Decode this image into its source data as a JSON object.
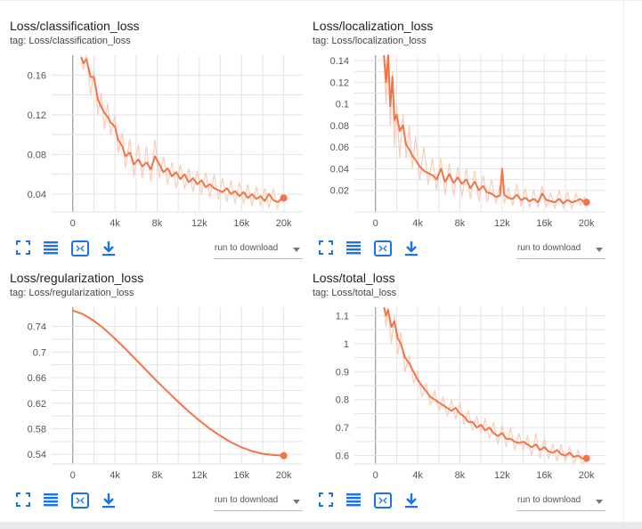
{
  "page": {
    "download_label": "run to download"
  },
  "colors": {
    "series": "#f47446",
    "raw": "#f9c6b2",
    "grid": "#e3e3e3",
    "axis": "#999999",
    "icon": "#1a73e8"
  },
  "chart_data": [
    {
      "type": "line",
      "title": "Loss/classification_loss",
      "tag": "tag: Loss/classification_loss",
      "xlabel": "",
      "ylabel": "",
      "x_ticks": [
        "0",
        "4k",
        "8k",
        "12k",
        "16k",
        "20k"
      ],
      "y_ticks": [
        "0.04",
        "0.08",
        "0.12",
        "0.16"
      ],
      "xlim": [
        -2000,
        21800
      ],
      "ylim": [
        0.022,
        0.18
      ],
      "smoothed": {
        "x": [
          800,
          1000,
          1300,
          1700,
          2000,
          2400,
          2700,
          3000,
          3300,
          3600,
          4000,
          4300,
          4700,
          5000,
          5400,
          5800,
          6200,
          6600,
          7000,
          7400,
          7800,
          8200,
          8600,
          9000,
          9400,
          9800,
          10200,
          10600,
          11000,
          11400,
          11800,
          12200,
          12600,
          13000,
          13400,
          13800,
          14200,
          14600,
          15000,
          15400,
          15800,
          16200,
          16600,
          17000,
          17400,
          17800,
          18200,
          18600,
          19000,
          19400,
          19800,
          20000
        ],
        "y": [
          0.178,
          0.172,
          0.176,
          0.158,
          0.158,
          0.135,
          0.128,
          0.122,
          0.118,
          0.112,
          0.108,
          0.095,
          0.088,
          0.078,
          0.082,
          0.07,
          0.075,
          0.068,
          0.072,
          0.065,
          0.078,
          0.07,
          0.062,
          0.066,
          0.058,
          0.062,
          0.055,
          0.06,
          0.052,
          0.056,
          0.05,
          0.054,
          0.047,
          0.05,
          0.046,
          0.044,
          0.042,
          0.046,
          0.04,
          0.043,
          0.038,
          0.042,
          0.036,
          0.04,
          0.035,
          0.038,
          0.033,
          0.04,
          0.034,
          0.032,
          0.035,
          0.036
        ]
      },
      "raw": {
        "x": [
          800,
          1000,
          1300,
          1700,
          2000,
          2400,
          2700,
          3000,
          3300,
          3600,
          4000,
          4300,
          4700,
          5000,
          5400,
          5800,
          6200,
          6600,
          7000,
          7400,
          7800,
          8200,
          8600,
          9000,
          9400,
          9800,
          10200,
          10600,
          11000,
          11400,
          11800,
          12200,
          12600,
          13000,
          13400,
          13800,
          14200,
          14600,
          15000,
          15400,
          15800,
          16200,
          16600,
          17000,
          17400,
          17800,
          18200,
          18600,
          19000,
          19400,
          19800,
          20000
        ],
        "y": [
          0.18,
          0.165,
          0.18,
          0.14,
          0.165,
          0.12,
          0.142,
          0.105,
          0.132,
          0.1,
          0.12,
          0.082,
          0.102,
          0.066,
          0.096,
          0.058,
          0.09,
          0.056,
          0.088,
          0.052,
          0.095,
          0.056,
          0.078,
          0.05,
          0.072,
          0.046,
          0.07,
          0.045,
          0.066,
          0.042,
          0.064,
          0.04,
          0.062,
          0.036,
          0.06,
          0.034,
          0.056,
          0.032,
          0.054,
          0.03,
          0.052,
          0.03,
          0.05,
          0.028,
          0.048,
          0.028,
          0.046,
          0.026,
          0.046,
          0.026,
          0.04,
          0.036
        ]
      },
      "last_point": {
        "x": 20000,
        "y": 0.036
      }
    },
    {
      "type": "line",
      "title": "Loss/localization_loss",
      "tag": "tag: Loss/localization_loss",
      "xlabel": "",
      "ylabel": "",
      "x_ticks": [
        "0",
        "4k",
        "8k",
        "12k",
        "16k",
        "20k"
      ],
      "y_ticks": [
        "0.02",
        "0.04",
        "0.06",
        "0.08",
        "0.1",
        "0.12",
        "0.14"
      ],
      "xlim": [
        -2000,
        21800
      ],
      "ylim": [
        0.0,
        0.145
      ],
      "smoothed": {
        "x": [
          800,
          1000,
          1200,
          1400,
          1600,
          1800,
          2000,
          2300,
          2600,
          2900,
          3200,
          3500,
          3800,
          4200,
          4600,
          5000,
          5400,
          5800,
          6200,
          6600,
          7000,
          7400,
          7800,
          8200,
          8600,
          9000,
          9400,
          9800,
          10200,
          10600,
          11000,
          11400,
          11800,
          12000,
          12200,
          12600,
          13000,
          13400,
          13800,
          14200,
          14600,
          15000,
          15400,
          15800,
          16200,
          16600,
          17000,
          17400,
          17800,
          18200,
          18600,
          19000,
          19400,
          19800,
          20000
        ],
        "y": [
          0.145,
          0.12,
          0.145,
          0.098,
          0.125,
          0.085,
          0.09,
          0.075,
          0.08,
          0.062,
          0.058,
          0.052,
          0.048,
          0.042,
          0.038,
          0.036,
          0.034,
          0.03,
          0.04,
          0.028,
          0.035,
          0.027,
          0.032,
          0.026,
          0.03,
          0.022,
          0.028,
          0.02,
          0.024,
          0.018,
          0.017,
          0.014,
          0.015,
          0.04,
          0.016,
          0.013,
          0.012,
          0.016,
          0.011,
          0.013,
          0.01,
          0.012,
          0.009,
          0.017,
          0.011,
          0.01,
          0.009,
          0.012,
          0.008,
          0.011,
          0.009,
          0.01,
          0.012,
          0.009,
          0.009
        ]
      },
      "raw": {
        "x": [
          800,
          1000,
          1200,
          1400,
          1600,
          1800,
          2000,
          2300,
          2600,
          2900,
          3200,
          3500,
          3800,
          4200,
          4600,
          5000,
          5400,
          5800,
          6200,
          6600,
          7000,
          7400,
          7800,
          8200,
          8600,
          9000,
          9400,
          9800,
          10200,
          10600,
          11000,
          11400,
          11800,
          12000,
          12200,
          12600,
          13000,
          13400,
          13800,
          14200,
          14600,
          15000,
          15400,
          15800,
          16200,
          16600,
          17000,
          17400,
          17800,
          18200,
          18600,
          19000,
          19400,
          19800,
          20000
        ],
        "y": [
          0.145,
          0.1,
          0.145,
          0.08,
          0.13,
          0.06,
          0.1,
          0.05,
          0.09,
          0.05,
          0.08,
          0.04,
          0.07,
          0.03,
          0.06,
          0.025,
          0.05,
          0.02,
          0.05,
          0.016,
          0.045,
          0.015,
          0.042,
          0.014,
          0.04,
          0.012,
          0.038,
          0.01,
          0.034,
          0.009,
          0.03,
          0.008,
          0.025,
          0.03,
          0.008,
          0.022,
          0.006,
          0.026,
          0.005,
          0.022,
          0.004,
          0.02,
          0.004,
          0.024,
          0.004,
          0.018,
          0.003,
          0.02,
          0.003,
          0.018,
          0.003,
          0.017,
          0.006,
          0.014,
          0.009
        ]
      },
      "last_point": {
        "x": 20000,
        "y": 0.009
      }
    },
    {
      "type": "line",
      "title": "Loss/regularization_loss",
      "tag": "tag: Loss/regularization_loss",
      "xlabel": "",
      "ylabel": "",
      "x_ticks": [
        "0",
        "4k",
        "8k",
        "12k",
        "16k",
        "20k"
      ],
      "y_ticks": [
        "0.54",
        "0.58",
        "0.62",
        "0.66",
        "0.7",
        "0.74"
      ],
      "xlim": [
        -2000,
        21800
      ],
      "ylim": [
        0.525,
        0.77
      ],
      "smoothed": {
        "x": [
          0,
          1000,
          2000,
          3000,
          4000,
          5000,
          6000,
          7000,
          8000,
          9000,
          10000,
          11000,
          12000,
          13000,
          14000,
          15000,
          16000,
          17000,
          18000,
          19000,
          20000
        ],
        "y": [
          0.765,
          0.759,
          0.749,
          0.736,
          0.721,
          0.705,
          0.688,
          0.671,
          0.654,
          0.638,
          0.622,
          0.607,
          0.593,
          0.58,
          0.569,
          0.559,
          0.551,
          0.545,
          0.541,
          0.539,
          0.538
        ]
      },
      "raw": null,
      "last_point": {
        "x": 20000,
        "y": 0.538
      }
    },
    {
      "type": "line",
      "title": "Loss/total_loss",
      "tag": "tag: Loss/total_loss",
      "xlabel": "",
      "ylabel": "",
      "x_ticks": [
        "0",
        "4k",
        "8k",
        "12k",
        "16k",
        "20k"
      ],
      "y_ticks": [
        "0.6",
        "0.7",
        "0.8",
        "0.9",
        "1",
        "1.1"
      ],
      "xlim": [
        -2000,
        21800
      ],
      "ylim": [
        0.57,
        1.13
      ],
      "smoothed": {
        "x": [
          800,
          1000,
          1200,
          1500,
          1800,
          2100,
          2400,
          2800,
          3200,
          3600,
          4000,
          4400,
          4800,
          5200,
          5600,
          6000,
          6400,
          6800,
          7200,
          7600,
          8000,
          8400,
          8800,
          9200,
          9600,
          10000,
          10400,
          10800,
          11200,
          11600,
          12000,
          12400,
          12800,
          13200,
          13600,
          14000,
          14400,
          14800,
          15200,
          15600,
          16000,
          16400,
          16800,
          17200,
          17600,
          18000,
          18400,
          18800,
          19200,
          19600,
          20000
        ],
        "y": [
          1.14,
          1.1,
          1.12,
          1.06,
          1.08,
          1.02,
          1.0,
          0.95,
          0.93,
          0.9,
          0.87,
          0.85,
          0.83,
          0.81,
          0.8,
          0.79,
          0.78,
          0.77,
          0.76,
          0.77,
          0.75,
          0.74,
          0.72,
          0.72,
          0.7,
          0.71,
          0.69,
          0.7,
          0.68,
          0.67,
          0.68,
          0.66,
          0.66,
          0.65,
          0.645,
          0.65,
          0.64,
          0.63,
          0.64,
          0.62,
          0.63,
          0.615,
          0.61,
          0.62,
          0.605,
          0.6,
          0.61,
          0.595,
          0.6,
          0.59,
          0.59
        ]
      },
      "raw": {
        "x": [
          800,
          1000,
          1200,
          1500,
          1800,
          2100,
          2400,
          2800,
          3200,
          3600,
          4000,
          4400,
          4800,
          5200,
          5600,
          6000,
          6400,
          6800,
          7200,
          7600,
          8000,
          8400,
          8800,
          9200,
          9600,
          10000,
          10400,
          10800,
          11200,
          11600,
          12000,
          12400,
          12800,
          13200,
          13600,
          14000,
          14400,
          14800,
          15200,
          15600,
          16000,
          16400,
          16800,
          17200,
          17600,
          18000,
          18400,
          18800,
          19200,
          19600,
          20000
        ],
        "y": [
          1.14,
          1.06,
          1.14,
          1.0,
          1.1,
          0.96,
          1.04,
          0.9,
          0.96,
          0.86,
          0.9,
          0.81,
          0.86,
          0.78,
          0.83,
          0.76,
          0.81,
          0.74,
          0.8,
          0.73,
          0.79,
          0.71,
          0.76,
          0.69,
          0.74,
          0.68,
          0.73,
          0.66,
          0.72,
          0.64,
          0.71,
          0.63,
          0.7,
          0.62,
          0.68,
          0.62,
          0.67,
          0.6,
          0.68,
          0.59,
          0.66,
          0.59,
          0.64,
          0.58,
          0.64,
          0.58,
          0.63,
          0.57,
          0.62,
          0.57,
          0.59
        ]
      },
      "last_point": {
        "x": 20000,
        "y": 0.59
      }
    }
  ]
}
